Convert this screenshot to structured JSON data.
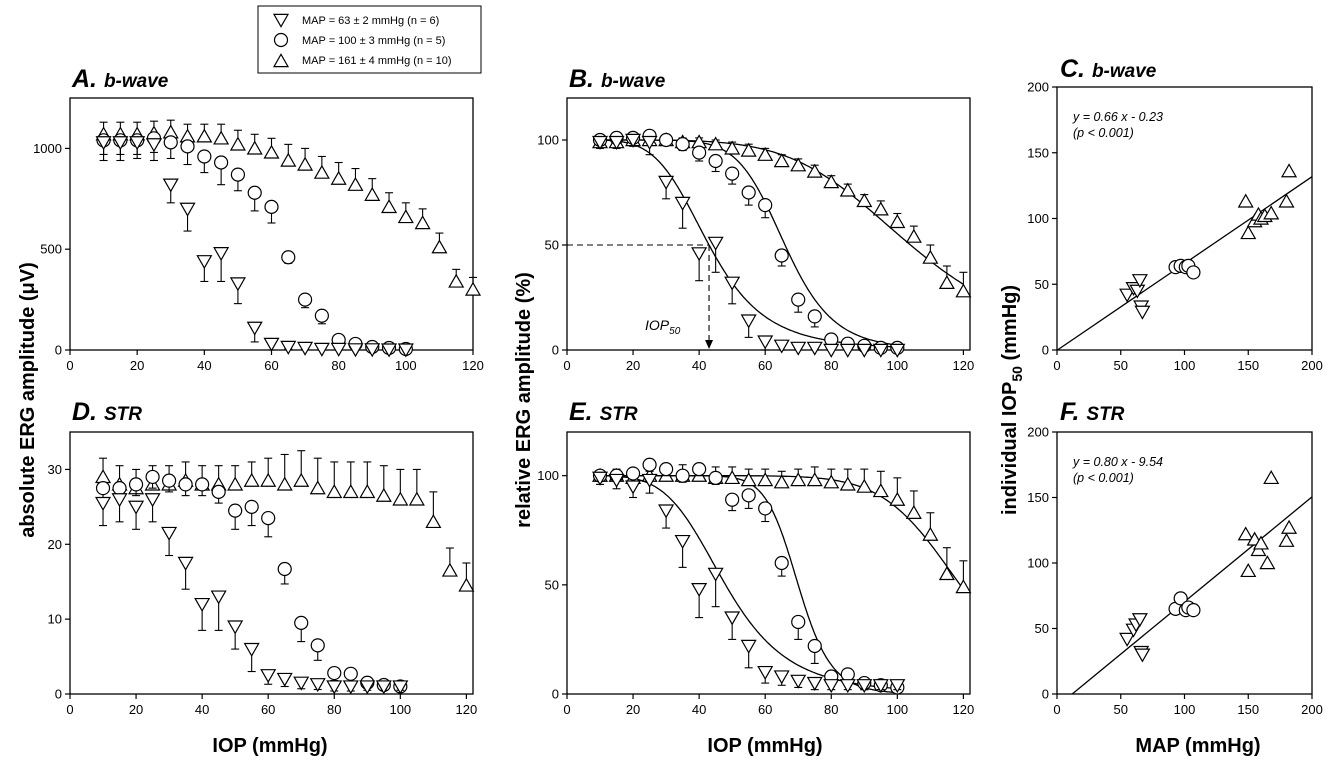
{
  "legend": [
    {
      "marker": "down-triangle",
      "label": "MAP = 63 ± 2 mmHg  (n = 6)"
    },
    {
      "marker": "circle",
      "label": "MAP = 100 ± 3 mmHg (n = 5)"
    },
    {
      "marker": "up-triangle",
      "label": "MAP = 161 ± 4 mmHg (n = 10)"
    }
  ],
  "shared_labels": {
    "absolute_ylabel": "absolute ERG amplitude (μV)",
    "relative_ylabel": "relative ERG amplitude (%)",
    "individual_ylabel_main": "individual IOP",
    "individual_ylabel_sub": "50",
    "individual_ylabel_unit": " (mmHg)",
    "iop_xlabel_left": "IOP (mmHg)",
    "iop_xlabel_middle": "IOP (mmHg)",
    "map_xlabel": "MAP (mmHg)"
  },
  "chart_data": [
    {
      "id": "A",
      "type": "scatter",
      "letter": "A.",
      "subtitle": "b-wave",
      "xlim": [
        0,
        120
      ],
      "ylim": [
        0,
        1250
      ],
      "xticks": [
        0,
        20,
        40,
        60,
        80,
        100,
        120
      ],
      "yticks": [
        0,
        500,
        1000
      ],
      "series": [
        {
          "marker": "down",
          "x": [
            10,
            15,
            20,
            25,
            30,
            35,
            40,
            45,
            50,
            55,
            60,
            65,
            70,
            75,
            80,
            85,
            90,
            95,
            100
          ],
          "y": [
            1030,
            1030,
            1030,
            1020,
            820,
            700,
            440,
            480,
            330,
            110,
            30,
            15,
            10,
            5,
            5,
            3,
            3,
            2,
            2
          ],
          "err": [
            90,
            90,
            80,
            80,
            90,
            110,
            100,
            140,
            100,
            70,
            30,
            10,
            8,
            5,
            5,
            3,
            3,
            2,
            2
          ]
        },
        {
          "marker": "circle",
          "x": [
            10,
            15,
            20,
            25,
            30,
            35,
            40,
            45,
            50,
            55,
            60,
            65,
            70,
            75,
            80,
            85,
            90,
            95,
            100
          ],
          "y": [
            1040,
            1040,
            1040,
            1050,
            1030,
            1010,
            960,
            930,
            870,
            780,
            710,
            460,
            250,
            170,
            50,
            30,
            15,
            10,
            5
          ],
          "err": [
            70,
            70,
            70,
            70,
            80,
            90,
            80,
            110,
            80,
            90,
            80,
            30,
            40,
            40,
            20,
            15,
            10,
            8,
            5
          ]
        },
        {
          "marker": "up",
          "x": [
            10,
            15,
            20,
            25,
            30,
            35,
            40,
            45,
            50,
            55,
            60,
            65,
            70,
            75,
            80,
            85,
            90,
            95,
            100,
            105,
            110,
            115,
            120
          ],
          "y": [
            1070,
            1070,
            1070,
            1075,
            1080,
            1060,
            1060,
            1050,
            1020,
            1000,
            980,
            940,
            920,
            880,
            850,
            820,
            770,
            710,
            660,
            630,
            510,
            340,
            300
          ],
          "err": [
            60,
            60,
            60,
            60,
            60,
            60,
            60,
            70,
            70,
            70,
            70,
            80,
            80,
            80,
            80,
            80,
            80,
            70,
            70,
            70,
            70,
            60,
            60
          ]
        }
      ]
    },
    {
      "id": "B",
      "type": "scatter",
      "letter": "B.",
      "subtitle": "b-wave",
      "xlim": [
        0,
        122
      ],
      "ylim": [
        0,
        120
      ],
      "xticks": [
        0,
        20,
        40,
        60,
        80,
        100,
        120
      ],
      "yticks": [
        0,
        50,
        100
      ],
      "annotation": {
        "label": "IOP",
        "sub": "50",
        "x": 43,
        "y": 50
      },
      "series": [
        {
          "marker": "down",
          "x": [
            10,
            15,
            20,
            25,
            30,
            35,
            40,
            45,
            50,
            55,
            60,
            65,
            70,
            75,
            80,
            85,
            90,
            95,
            100
          ],
          "y": [
            99,
            99,
            100,
            99,
            80,
            70,
            46,
            51,
            32,
            14,
            4,
            2,
            1,
            1,
            0,
            0,
            0,
            0,
            0
          ],
          "err": [
            3,
            3,
            3,
            6,
            8,
            12,
            13,
            14,
            10,
            8,
            4,
            2,
            1,
            1,
            0,
            0,
            0,
            0,
            0
          ],
          "fit": {
            "iop50": 43,
            "n": 5
          }
        },
        {
          "marker": "circle",
          "x": [
            10,
            15,
            20,
            25,
            30,
            35,
            40,
            45,
            50,
            55,
            60,
            65,
            70,
            75,
            80,
            85,
            90,
            95,
            100
          ],
          "y": [
            100,
            101,
            101,
            102,
            100,
            98,
            94,
            90,
            84,
            75,
            69,
            45,
            24,
            16,
            5,
            3,
            2,
            1,
            1
          ],
          "err": [
            2,
            2,
            2,
            2,
            2,
            3,
            4,
            5,
            5,
            6,
            6,
            5,
            6,
            5,
            3,
            2,
            2,
            1,
            1
          ],
          "fit": {
            "iop50": 66,
            "n": 9
          }
        },
        {
          "marker": "up",
          "x": [
            10,
            15,
            20,
            25,
            30,
            35,
            40,
            45,
            50,
            55,
            60,
            65,
            70,
            75,
            80,
            85,
            90,
            95,
            100,
            105,
            110,
            115,
            120
          ],
          "y": [
            99,
            99,
            100,
            100,
            100,
            99,
            99,
            98,
            96,
            95,
            93,
            90,
            88,
            85,
            80,
            76,
            71,
            67,
            61,
            54,
            44,
            32,
            28
          ],
          "err": [
            2,
            2,
            2,
            2,
            2,
            2,
            2,
            2,
            3,
            3,
            3,
            3,
            3,
            3,
            3,
            3,
            3,
            4,
            4,
            5,
            6,
            8,
            9
          ],
          "fit": {
            "iop50": 104,
            "n": 5.5
          }
        }
      ]
    },
    {
      "id": "C",
      "type": "scatter",
      "letter": "C.",
      "subtitle": "b-wave",
      "xlim": [
        0,
        200
      ],
      "ylim": [
        0,
        200
      ],
      "xticks": [
        0,
        50,
        100,
        150,
        200
      ],
      "yticks": [
        0,
        50,
        100,
        150,
        200
      ],
      "equation": "y = 0.66 x - 0.23",
      "pvalue": "(p < 0.001)",
      "regression": {
        "slope": 0.66,
        "intercept": -0.23
      },
      "series": [
        {
          "marker": "down",
          "x": [
            55,
            60,
            63,
            65,
            66,
            67
          ],
          "y": [
            42,
            47,
            45,
            53,
            33,
            29
          ]
        },
        {
          "marker": "circle",
          "x": [
            93,
            97,
            101,
            103,
            107
          ],
          "y": [
            63,
            64,
            63,
            64,
            59
          ]
        },
        {
          "marker": "up",
          "x": [
            148,
            150,
            155,
            158,
            160,
            163,
            168,
            180,
            182
          ],
          "y": [
            113,
            89,
            98,
            103,
            100,
            102,
            104,
            113,
            136
          ]
        }
      ]
    },
    {
      "id": "D",
      "type": "scatter",
      "letter": "D.",
      "subtitle": "STR",
      "xlim": [
        0,
        122
      ],
      "ylim": [
        0,
        35
      ],
      "xticks": [
        0,
        20,
        40,
        60,
        80,
        100,
        120
      ],
      "yticks": [
        0,
        10,
        20,
        30
      ],
      "series": [
        {
          "marker": "down",
          "x": [
            10,
            15,
            20,
            25,
            30,
            35,
            40,
            45,
            50,
            55,
            60,
            65,
            70,
            75,
            80,
            85,
            90,
            95,
            100
          ],
          "y": [
            25.5,
            26,
            25,
            26,
            21.5,
            17.5,
            12,
            13,
            9,
            6,
            2.5,
            2,
            1.5,
            1.3,
            1,
            1,
            1,
            1,
            1
          ],
          "err": [
            3,
            3,
            3,
            3,
            3,
            3.5,
            3.5,
            4.5,
            3,
            3,
            1.2,
            1,
            0.8,
            0.7,
            0.6,
            0.6,
            0.5,
            0.5,
            0.5
          ]
        },
        {
          "marker": "circle",
          "x": [
            10,
            15,
            20,
            25,
            30,
            35,
            40,
            45,
            50,
            55,
            60,
            65,
            70,
            75,
            80,
            85,
            90,
            95,
            100
          ],
          "y": [
            27.5,
            27.5,
            28,
            29,
            28.5,
            28,
            28,
            27,
            24.5,
            25,
            23.5,
            16.7,
            9.5,
            6.5,
            2.8,
            2.7,
            1.5,
            1.2,
            1
          ],
          "err": [
            1.5,
            1.5,
            1.5,
            1.5,
            1.5,
            1.5,
            1.5,
            1.5,
            2.5,
            2.5,
            2.5,
            2,
            2.5,
            2,
            1,
            1,
            0.7,
            0.6,
            0.5
          ]
        },
        {
          "marker": "up",
          "x": [
            10,
            15,
            20,
            25,
            30,
            35,
            40,
            45,
            50,
            55,
            60,
            65,
            70,
            75,
            80,
            85,
            90,
            95,
            100,
            105,
            110,
            115,
            120
          ],
          "y": [
            29,
            28,
            27.5,
            28,
            28,
            28.5,
            28,
            28,
            28,
            28.5,
            28.5,
            28,
            28.5,
            27.5,
            27,
            27,
            27,
            26.5,
            26,
            26,
            23,
            16.5,
            14.5
          ],
          "err": [
            2.5,
            2.5,
            2.5,
            2.5,
            2.5,
            2.5,
            2.5,
            2.5,
            2.5,
            2.5,
            3,
            4,
            4,
            4,
            4,
            4,
            4,
            4,
            4,
            4,
            4,
            3,
            3
          ]
        }
      ]
    },
    {
      "id": "E",
      "type": "scatter",
      "letter": "E.",
      "subtitle": "STR",
      "xlim": [
        0,
        122
      ],
      "ylim": [
        0,
        120
      ],
      "xticks": [
        0,
        20,
        40,
        60,
        80,
        100,
        120
      ],
      "yticks": [
        0,
        50,
        100
      ],
      "series": [
        {
          "marker": "down",
          "x": [
            10,
            15,
            20,
            25,
            30,
            35,
            40,
            45,
            50,
            55,
            60,
            65,
            70,
            75,
            80,
            85,
            90,
            95,
            100
          ],
          "y": [
            99,
            98,
            95,
            98,
            84,
            70,
            48,
            55,
            35,
            22,
            10,
            8,
            6,
            5,
            4,
            4,
            4,
            4,
            4
          ],
          "err": [
            3,
            4,
            5,
            6,
            8,
            12,
            13,
            15,
            10,
            10,
            5,
            4,
            3,
            3,
            2,
            2,
            2,
            2,
            2
          ],
          "fit": {
            "iop50": 48,
            "n": 5
          }
        },
        {
          "marker": "circle",
          "x": [
            10,
            15,
            20,
            25,
            30,
            35,
            40,
            45,
            50,
            55,
            60,
            65,
            70,
            75,
            80,
            85,
            90,
            95,
            100
          ],
          "y": [
            100,
            100,
            101,
            105,
            103,
            100,
            103,
            99,
            89,
            91,
            85,
            60,
            33,
            22,
            8,
            9,
            5,
            4,
            3
          ],
          "err": [
            2,
            2,
            2,
            3,
            3,
            3,
            3,
            3,
            5,
            6,
            6,
            6,
            8,
            8,
            4,
            3,
            3,
            2,
            2
          ],
          "fit": {
            "iop50": 70,
            "n": 14
          }
        },
        {
          "marker": "up",
          "x": [
            10,
            15,
            20,
            25,
            30,
            35,
            40,
            45,
            50,
            55,
            60,
            65,
            70,
            75,
            80,
            85,
            90,
            95,
            100,
            105,
            110,
            115,
            120
          ],
          "y": [
            100,
            100,
            99,
            100,
            100,
            100,
            100,
            99,
            99,
            98,
            98,
            97,
            98,
            98,
            97,
            96,
            95,
            93,
            89,
            83,
            73,
            55,
            49
          ],
          "err": [
            2,
            3,
            4,
            5,
            5,
            5,
            5,
            5,
            5,
            5,
            5,
            5,
            5,
            6,
            6,
            7,
            8,
            9,
            10,
            10,
            10,
            12,
            12
          ],
          "fit": {
            "iop50": 119,
            "n": 10
          }
        }
      ]
    },
    {
      "id": "F",
      "type": "scatter",
      "letter": "F.",
      "subtitle": "STR",
      "xlim": [
        0,
        200
      ],
      "ylim": [
        0,
        200
      ],
      "xticks": [
        0,
        50,
        100,
        150,
        200
      ],
      "yticks": [
        0,
        50,
        100,
        150,
        200
      ],
      "equation": "y = 0.80 x - 9.54",
      "pvalue": "(p < 0.001)",
      "regression": {
        "slope": 0.8,
        "intercept": -9.54
      },
      "series": [
        {
          "marker": "down",
          "x": [
            55,
            60,
            62,
            65,
            66,
            67
          ],
          "y": [
            42,
            49,
            53,
            57,
            32,
            30
          ]
        },
        {
          "marker": "circle",
          "x": [
            93,
            97,
            101,
            103,
            107
          ],
          "y": [
            65,
            73,
            64,
            66,
            64
          ]
        },
        {
          "marker": "up",
          "x": [
            148,
            150,
            155,
            158,
            160,
            165,
            168,
            180,
            182
          ],
          "y": [
            122,
            94,
            118,
            110,
            115,
            100,
            165,
            117,
            127
          ]
        }
      ]
    }
  ]
}
